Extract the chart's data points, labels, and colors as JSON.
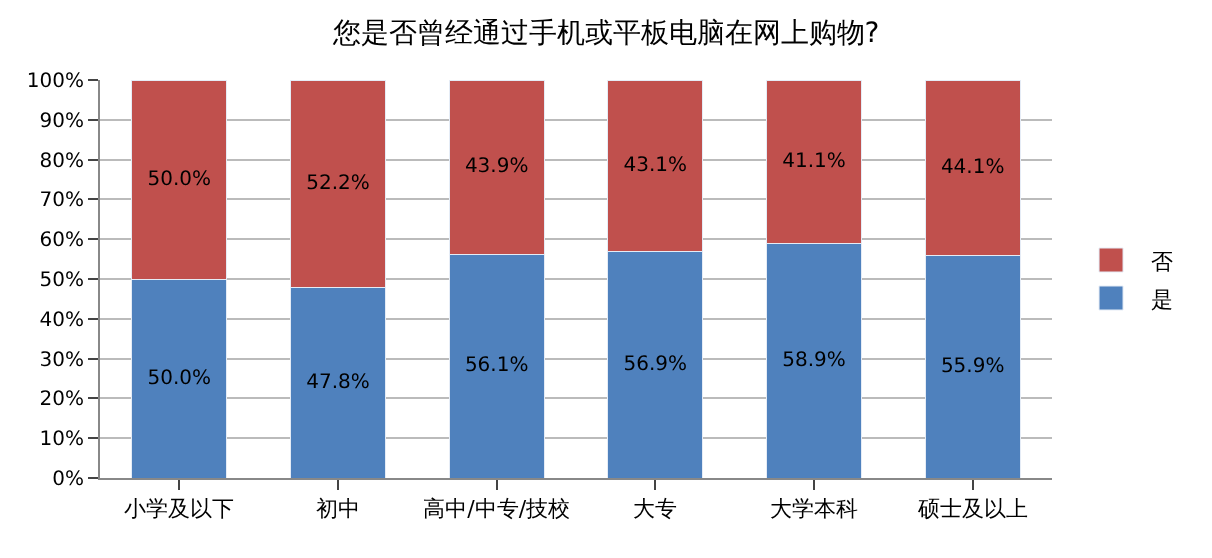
{
  "chart_data": {
    "type": "bar",
    "title": "您是否曾经通过手机或平板电脑在网上购物?",
    "stacked": true,
    "categories": [
      "小学及以下",
      "初中",
      "高中/中专/技校",
      "大专",
      "大学本科",
      "硕士及以上"
    ],
    "series": [
      {
        "name": "是",
        "color": "#4f81bd",
        "values": [
          50.0,
          47.8,
          56.1,
          56.9,
          58.9,
          55.9
        ],
        "value_labels": [
          "50.0%",
          "47.8%",
          "56.1%",
          "56.9%",
          "58.9%",
          "55.9%"
        ]
      },
      {
        "name": "否",
        "color": "#c0504d",
        "values": [
          50.0,
          52.2,
          43.9,
          43.1,
          41.1,
          44.1
        ],
        "value_labels": [
          "50.0%",
          "52.2%",
          "43.9%",
          "43.1%",
          "41.1%",
          "44.1%"
        ]
      }
    ],
    "ylim": [
      0,
      100
    ],
    "yticks": [
      {
        "value": 0,
        "label": "0%"
      },
      {
        "value": 10,
        "label": "10%"
      },
      {
        "value": 20,
        "label": "20%"
      },
      {
        "value": 30,
        "label": "30%"
      },
      {
        "value": 40,
        "label": "40%"
      },
      {
        "value": 50,
        "label": "50%"
      },
      {
        "value": 60,
        "label": "60%"
      },
      {
        "value": 70,
        "label": "70%"
      },
      {
        "value": 80,
        "label": "80%"
      },
      {
        "value": 90,
        "label": "90%"
      },
      {
        "value": 100,
        "label": "100%"
      }
    ],
    "grid": "y",
    "legend": "right"
  }
}
